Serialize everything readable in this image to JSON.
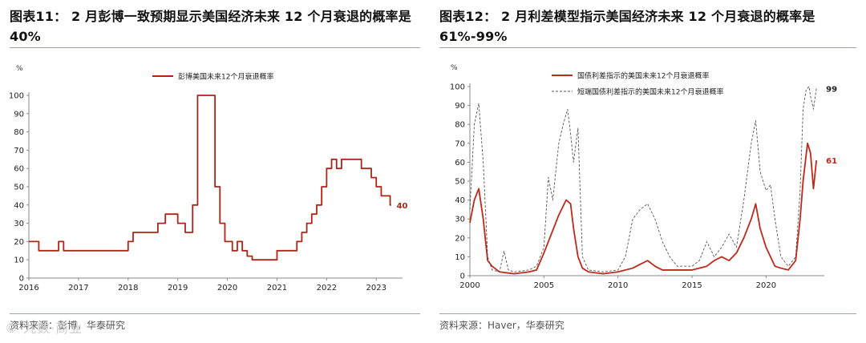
{
  "left": {
    "title_line1": "图表11：  2 月彭博一致预期显示美国经济未来  12 个月衰退的概率是",
    "title_line2": "40%",
    "source": "资料来源：彭博，华泰研究",
    "watermark": "© 九数·商业"
  },
  "right": {
    "title_line1": "图表12：  2 月利差模型指示美国经济未来  12 个月衰退的概率是",
    "title_line2": "61%-99%",
    "source": "资料来源：Haver，华泰研究"
  },
  "chart_data": [
    {
      "type": "line",
      "unit_label": "%",
      "ylim": [
        0,
        100
      ],
      "y_ticks": [
        0,
        10,
        20,
        30,
        40,
        50,
        60,
        70,
        80,
        90,
        100
      ],
      "xlim": [
        2016,
        2023.4
      ],
      "x_ticks": [
        2016,
        2017,
        2018,
        2019,
        2020,
        2021,
        2022,
        2023
      ],
      "legend_position": "top",
      "series": [
        {
          "name": "彭博美国未来12个月衰退概率",
          "color": "#b02418",
          "style": "solid",
          "step": true,
          "end_label": "40",
          "x": [
            2016.0,
            2016.2,
            2016.6,
            2016.7,
            2018.0,
            2018.1,
            2018.2,
            2018.6,
            2018.75,
            2019.0,
            2019.15,
            2019.3,
            2019.4,
            2019.75,
            2019.85,
            2019.95,
            2020.1,
            2020.2,
            2020.3,
            2020.4,
            2020.5,
            2020.7,
            2021.0,
            2021.3,
            2021.4,
            2021.5,
            2021.6,
            2021.7,
            2021.8,
            2021.9,
            2022.0,
            2022.1,
            2022.2,
            2022.3,
            2022.4,
            2022.7,
            2022.9,
            2023.0,
            2023.1,
            2023.2,
            2023.28
          ],
          "y": [
            20,
            15,
            20,
            15,
            20,
            25,
            25,
            30,
            35,
            30,
            25,
            40,
            100,
            50,
            30,
            20,
            15,
            20,
            15,
            12,
            10,
            10,
            15,
            15,
            20,
            25,
            30,
            35,
            40,
            50,
            60,
            65,
            60,
            65,
            65,
            60,
            55,
            50,
            45,
            45,
            40
          ]
        }
      ]
    },
    {
      "type": "line",
      "unit_label": "%",
      "ylim": [
        0,
        100
      ],
      "y_ticks": [
        0,
        10,
        20,
        30,
        40,
        50,
        60,
        70,
        80,
        90,
        100
      ],
      "xlim": [
        2000,
        2023.5
      ],
      "x_ticks": [
        2000,
        2005,
        2010,
        2015,
        2020
      ],
      "legend_position": "top",
      "series": [
        {
          "name": "国债利差指示的美国未来12个月衰退概率",
          "color": "#c0281c",
          "style": "solid",
          "end_label": "61",
          "x": [
            2000.0,
            2000.3,
            2000.6,
            2000.9,
            2001.2,
            2001.5,
            2002.0,
            2003.0,
            2004.0,
            2004.5,
            2005.0,
            2005.5,
            2006.0,
            2006.5,
            2006.8,
            2007.0,
            2007.3,
            2007.6,
            2008.0,
            2009.0,
            2010.0,
            2011.0,
            2011.5,
            2012.0,
            2012.5,
            2013.0,
            2014.0,
            2015.0,
            2016.0,
            2016.5,
            2017.0,
            2017.5,
            2018.0,
            2018.5,
            2019.0,
            2019.3,
            2019.6,
            2020.0,
            2020.3,
            2020.6,
            2021.0,
            2021.5,
            2022.0,
            2022.3,
            2022.5,
            2022.8,
            2023.0,
            2023.2,
            2023.4
          ],
          "y": [
            28,
            40,
            46,
            30,
            8,
            5,
            2,
            1,
            2,
            3,
            12,
            22,
            32,
            40,
            38,
            25,
            10,
            4,
            2,
            1,
            2,
            4,
            6,
            8,
            5,
            3,
            3,
            3,
            5,
            8,
            10,
            8,
            12,
            20,
            30,
            38,
            25,
            15,
            10,
            5,
            4,
            3,
            8,
            30,
            50,
            70,
            65,
            46,
            61
          ]
        },
        {
          "name": "短端国债利差指示的美国未来12个月衰退概率",
          "color": "#555555",
          "style": "dashed",
          "end_label": "99",
          "x": [
            2000.0,
            2000.3,
            2000.6,
            2000.9,
            2001.2,
            2001.5,
            2002.0,
            2002.3,
            2002.6,
            2003.0,
            2004.0,
            2004.5,
            2005.0,
            2005.3,
            2005.6,
            2006.0,
            2006.3,
            2006.6,
            2006.8,
            2007.0,
            2007.3,
            2007.6,
            2008.0,
            2009.0,
            2010.0,
            2010.5,
            2011.0,
            2011.5,
            2012.0,
            2012.5,
            2013.0,
            2013.5,
            2014.0,
            2015.0,
            2015.5,
            2016.0,
            2016.5,
            2017.0,
            2017.5,
            2018.0,
            2018.5,
            2019.0,
            2019.3,
            2019.6,
            2020.0,
            2020.3,
            2020.6,
            2021.0,
            2021.5,
            2022.0,
            2022.3,
            2022.5,
            2022.7,
            2022.9,
            2023.0,
            2023.2,
            2023.4
          ],
          "y": [
            35,
            80,
            91,
            60,
            10,
            3,
            2,
            13,
            3,
            2,
            3,
            5,
            15,
            52,
            40,
            70,
            80,
            88,
            75,
            60,
            78,
            10,
            3,
            2,
            3,
            10,
            30,
            35,
            38,
            30,
            18,
            10,
            5,
            5,
            8,
            18,
            10,
            15,
            22,
            15,
            40,
            70,
            82,
            55,
            45,
            48,
            30,
            10,
            5,
            10,
            45,
            88,
            98,
            100,
            95,
            88,
            99
          ]
        }
      ]
    }
  ]
}
